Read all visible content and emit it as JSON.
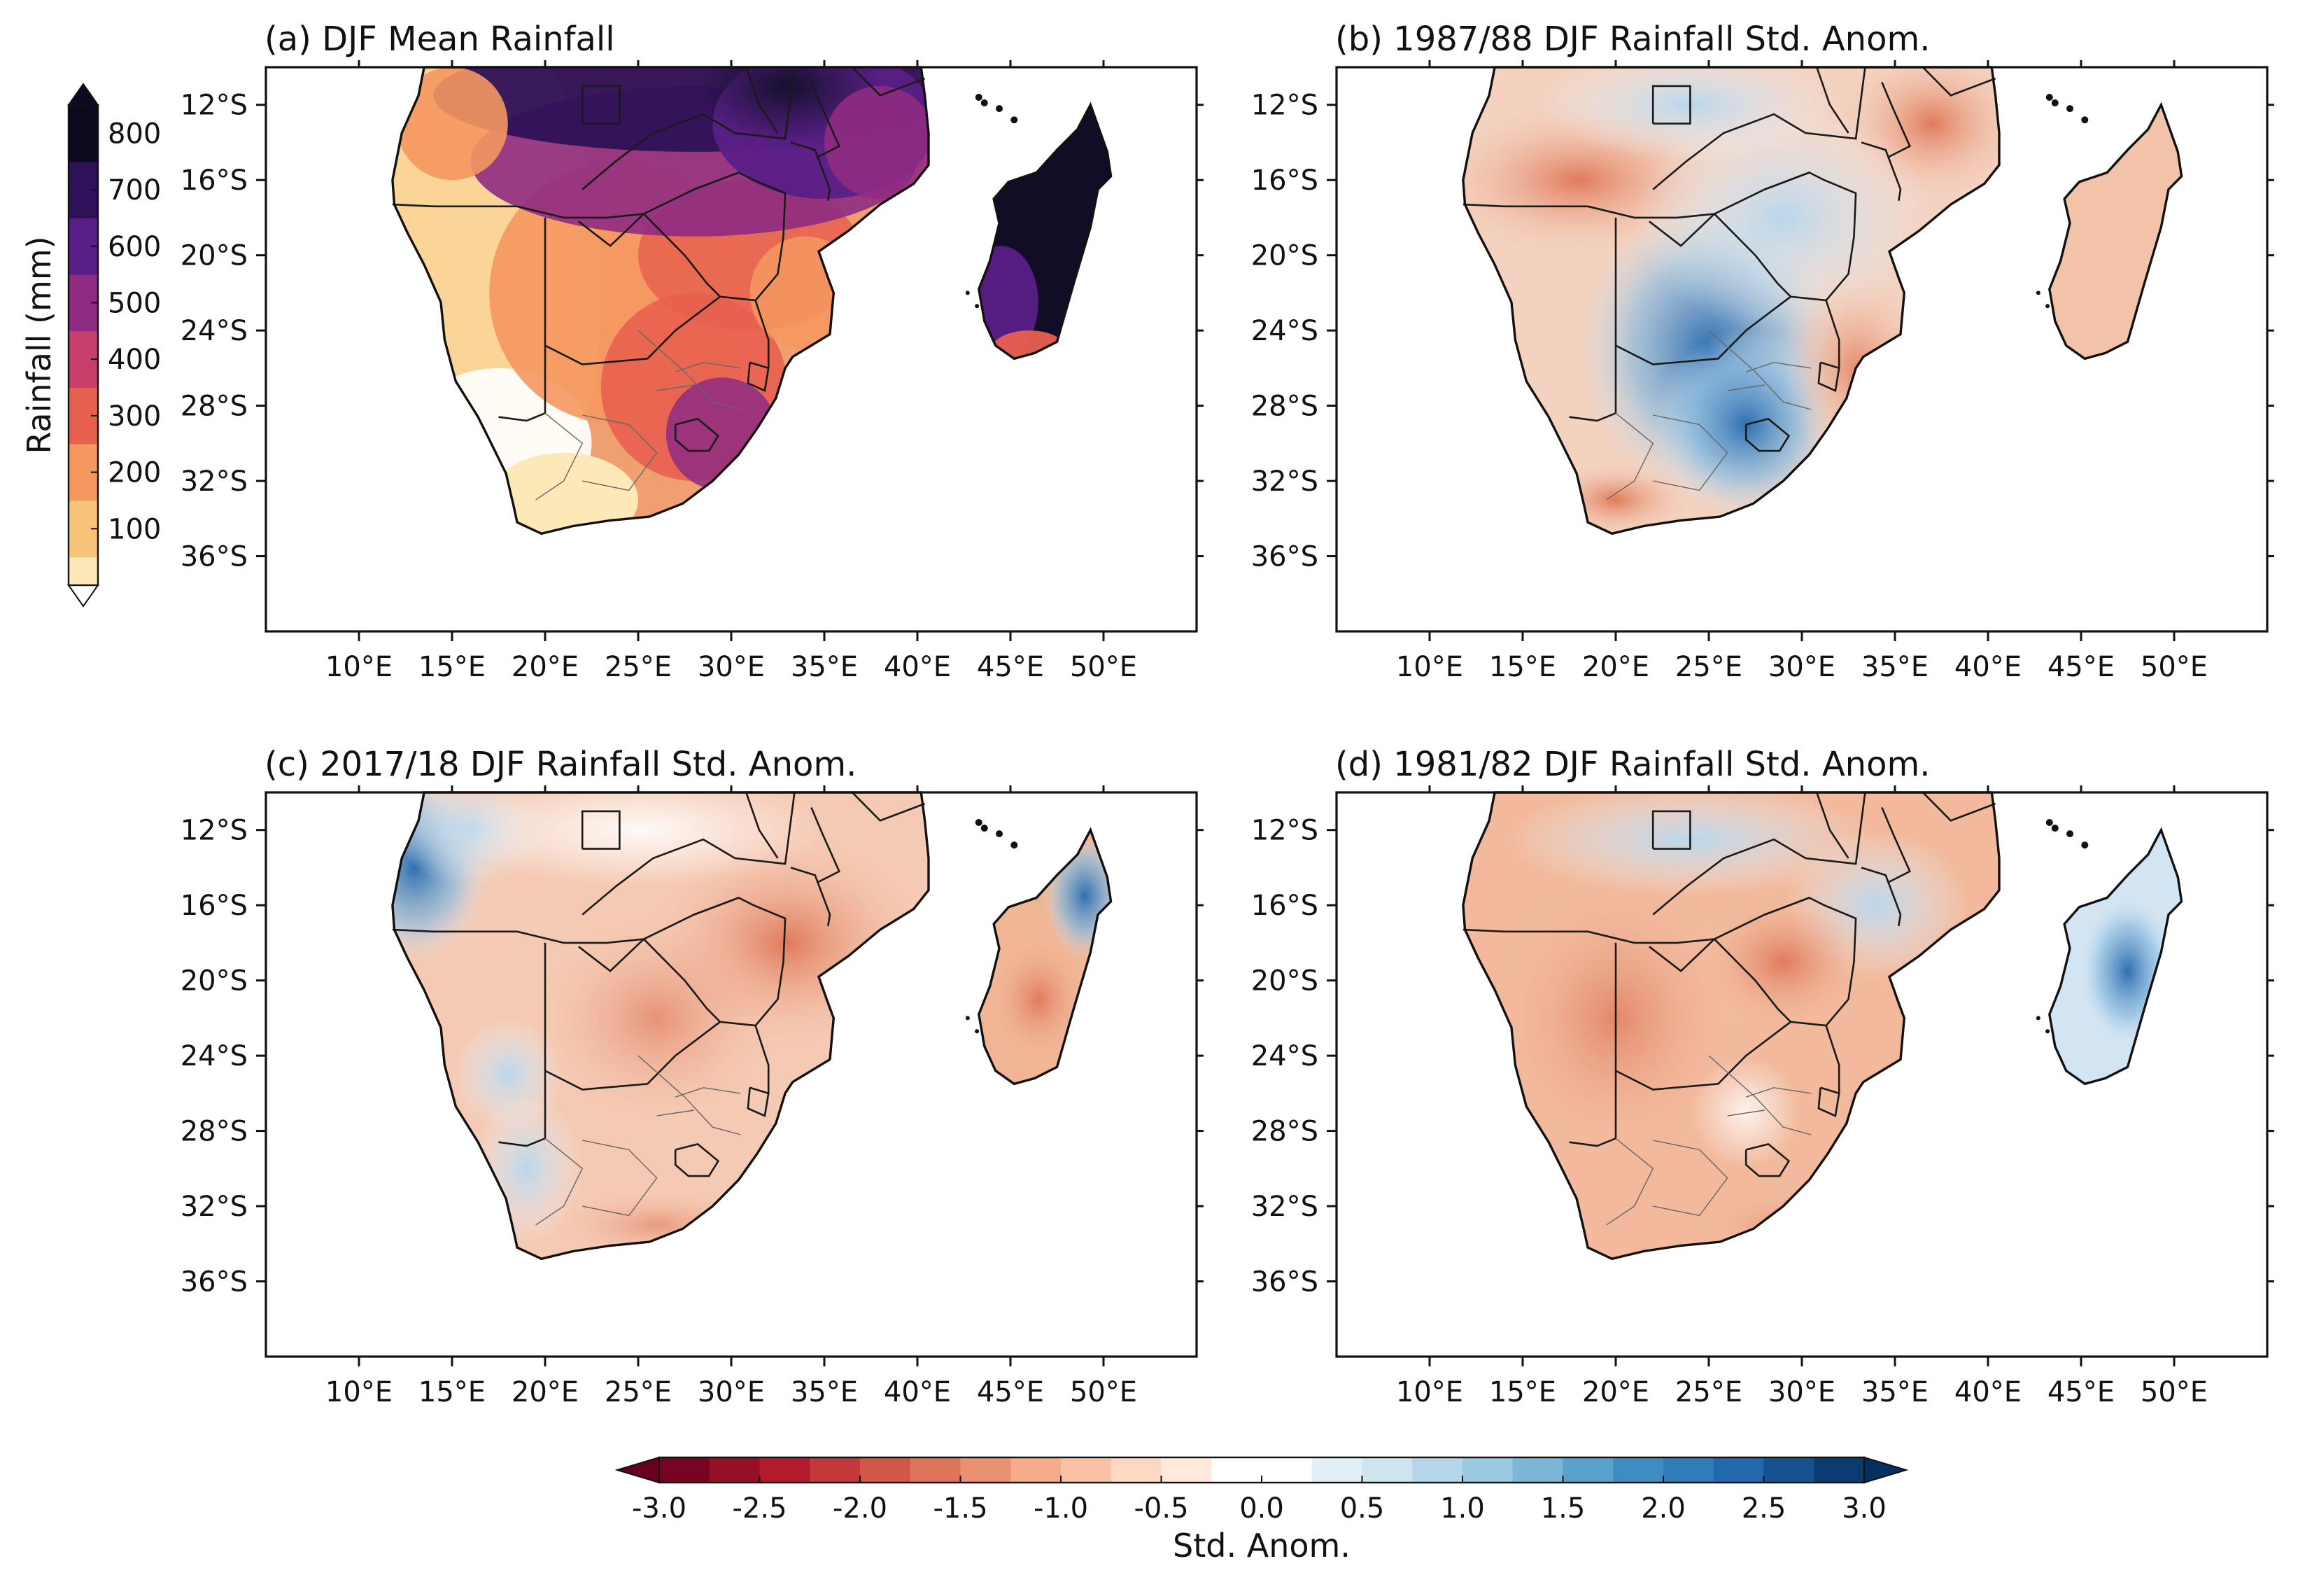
{
  "figure": {
    "panels": [
      {
        "id": "a",
        "title": "(a) DJF Mean Rainfall",
        "field": "mean_rainfall"
      },
      {
        "id": "b",
        "title": "(b) 1987/88 DJF Rainfall Std. Anom.",
        "field": "std_anomaly"
      },
      {
        "id": "c",
        "title": "(c) 2017/18 DJF Rainfall Std. Anom.",
        "field": "std_anomaly"
      },
      {
        "id": "d",
        "title": "(d) 1981/82 DJF Rainfall Std. Anom.",
        "field": "std_anomaly"
      }
    ]
  },
  "chart_data": {
    "type": "heatmap",
    "map_extent": {
      "lon": [
        5,
        55
      ],
      "lat": [
        -40,
        -10
      ]
    },
    "lat_ticks": [
      "12°S",
      "16°S",
      "20°S",
      "24°S",
      "28°S",
      "32°S",
      "36°S"
    ],
    "lat_tick_values": [
      -12,
      -16,
      -20,
      -24,
      -28,
      -32,
      -36
    ],
    "lon_ticks": [
      "10°E",
      "15°E",
      "20°E",
      "25°E",
      "30°E",
      "35°E",
      "40°E",
      "45°E",
      "50°E"
    ],
    "lon_tick_values": [
      10,
      15,
      20,
      25,
      30,
      35,
      40,
      45,
      50
    ],
    "rainfall_colorbar": {
      "label": "Rainfall (mm)",
      "tick_labels": [
        "100",
        "200",
        "300",
        "400",
        "500",
        "600",
        "700",
        "800"
      ],
      "range": [
        0,
        850
      ],
      "extend": "both"
    },
    "anomaly_colorbar": {
      "label": "Std. Anom.",
      "tick_labels": [
        "-3.0",
        "-2.5",
        "-2.0",
        "-1.5",
        "-1.0",
        "-0.5",
        "0.0",
        "0.5",
        "1.0",
        "1.5",
        "2.0",
        "2.5",
        "3.0"
      ],
      "range": [
        -3.0,
        3.0
      ],
      "step": 0.25,
      "extend": "both"
    },
    "colors": {
      "rainfall_ramp": [
        "#fde9b8",
        "#f8c47a",
        "#f59760",
        "#e8604f",
        "#c83e6a",
        "#8f2b82",
        "#5a1f86",
        "#2e1158",
        "#0b0a1e"
      ],
      "anomaly_neg": "#ef8a62",
      "anomaly_zero": "#ffffff",
      "anomaly_pos": "#4a90c8"
    }
  }
}
